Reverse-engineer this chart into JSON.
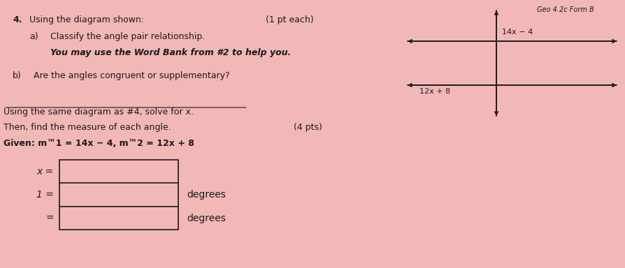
{
  "bg_color": "#f2b8b8",
  "title_num": "4.",
  "title_text": "Using the diagram shown:",
  "title_pts": "(1 pt each)",
  "part_a_label": "a)",
  "part_a_text": "Classify the angle pair relationship.",
  "part_a_italic": "You may use the Word Bank from #2 to help you.",
  "part_b_label": "b)",
  "part_b_text": "Are the angles congruent or supplementary?",
  "underline_text": "Using the same diagram as #4, solve for x.",
  "then_text": "Then, find the measure of each angle.",
  "pts_text": "(4 pts)",
  "given_text": "Given: m™1 = 14x − 4, m™2 = 12x + 8",
  "label_x": "x =",
  "label_1": "1 =",
  "label_eq": "=",
  "degrees1": "degrees",
  "degrees2": "degrees",
  "diagram_label1": "14x − 4",
  "diagram_label2": "12x + 8",
  "header_text": "Geo 4.2c Form B",
  "line_color": "#1a1a1a",
  "box_color": "#1a1a1a",
  "text_color": "#1a1a1a"
}
